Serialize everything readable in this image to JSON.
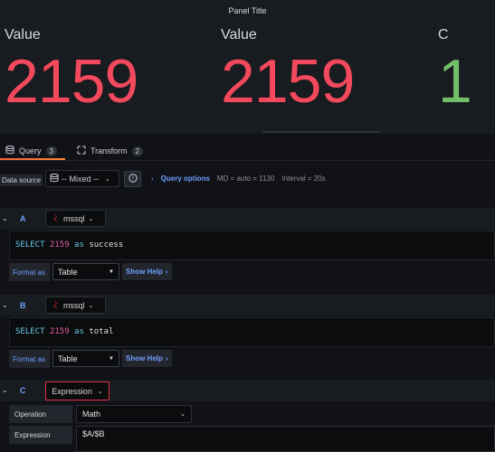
{
  "panel": {
    "title": "Panel Title",
    "stats": [
      {
        "label": "Value",
        "value": "2159",
        "color": "#f2495c"
      },
      {
        "label": "Value",
        "value": "2159",
        "color": "#f2495c"
      },
      {
        "label": "C",
        "value": "1",
        "color": "#73bf69"
      }
    ]
  },
  "tabs": [
    {
      "label": "Query",
      "count": "3",
      "icon": "database-icon",
      "active": true
    },
    {
      "label": "Transform",
      "count": "2",
      "icon": "transform-icon",
      "active": false
    }
  ],
  "datasource": {
    "label": "Data source",
    "selected": "-- Mixed --",
    "query_options_label": "Query options",
    "md": "MD = auto = 1130",
    "interval": "Interval = 20s"
  },
  "queries": [
    {
      "letter": "A",
      "datasource": "mssql",
      "sql_keyword": "SELECT",
      "sql_number": "2159",
      "sql_as": "as",
      "sql_alias": "success",
      "format_label": "Format as",
      "format_value": "Table",
      "show_help": "Show Help"
    },
    {
      "letter": "B",
      "datasource": "mssql",
      "sql_keyword": "SELECT",
      "sql_number": "2159",
      "sql_as": "as",
      "sql_alias": "total",
      "format_label": "Format as",
      "format_value": "Table",
      "show_help": "Show Help"
    }
  ],
  "expression": {
    "letter": "C",
    "type": "Expression",
    "operation_label": "Operation",
    "operation_value": "Math",
    "expression_label": "Expression",
    "expression_value": "$A/$B"
  },
  "colors": {
    "accent_blue": "#6e9fff",
    "red": "#f2495c",
    "green": "#73bf69",
    "tab_underline": "#ff8833"
  }
}
